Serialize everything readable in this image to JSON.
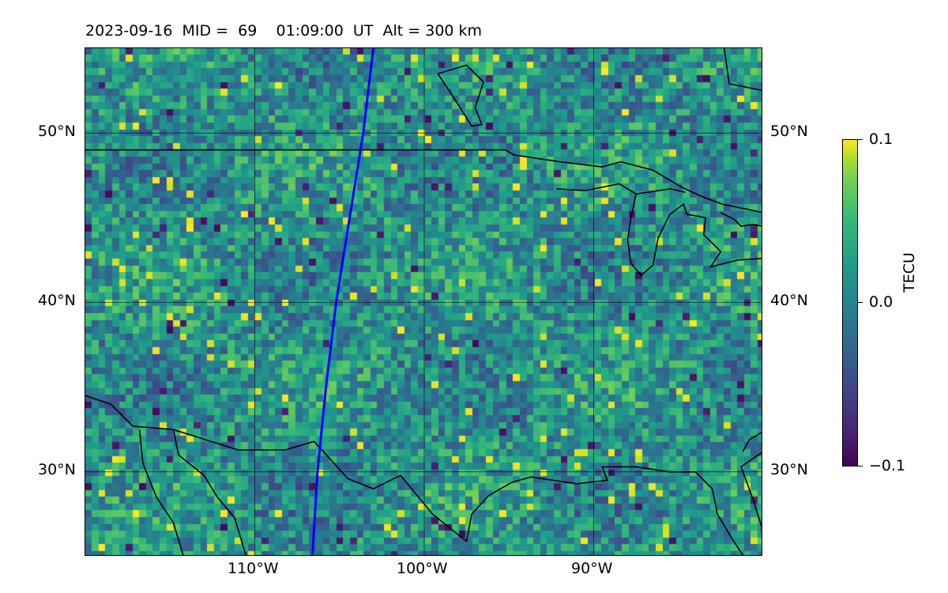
{
  "title": "2023-09-16  MID =  69    01:09:00  UT  Alt = 300 km",
  "map": {
    "lon_range": [
      -120,
      -80
    ],
    "lat_range": [
      25,
      55
    ],
    "lat_ticks": [
      {
        "value": 30,
        "label": "30°N"
      },
      {
        "value": 40,
        "label": "40°N"
      },
      {
        "value": 50,
        "label": "50°N"
      }
    ],
    "lon_ticks": [
      {
        "value": -110,
        "label": "110°W"
      },
      {
        "value": -100,
        "label": "100°W"
      },
      {
        "value": -90,
        "label": "90°W"
      }
    ],
    "gridlines": true,
    "track_color": "#0000ff",
    "track": [
      [
        -103,
        55
      ],
      [
        -103.6,
        50
      ],
      [
        -104.4,
        45
      ],
      [
        -105.2,
        40
      ],
      [
        -105.8,
        35
      ],
      [
        -106.3,
        30
      ],
      [
        -106.6,
        25
      ]
    ],
    "coastlines": [
      [
        [
          -120,
          49.0
        ],
        [
          -95.2,
          49.0
        ],
        [
          -94.7,
          48.7
        ],
        [
          -92.0,
          48.3
        ],
        [
          -89.5,
          48.0
        ],
        [
          -88.4,
          48.3
        ],
        [
          -86.5,
          47.8
        ],
        [
          -84.8,
          46.8
        ],
        [
          -83.5,
          46.2
        ],
        [
          -82.4,
          45.8
        ],
        [
          -80,
          45.3
        ]
      ],
      [
        [
          -120,
          34.5
        ],
        [
          -118.5,
          34.0
        ],
        [
          -117.2,
          32.7
        ],
        [
          -114.8,
          32.5
        ],
        [
          -111.0,
          31.3
        ],
        [
          -108.2,
          31.3
        ],
        [
          -106.5,
          31.8
        ],
        [
          -104.5,
          29.6
        ],
        [
          -103.0,
          29.0
        ],
        [
          -101.4,
          29.8
        ],
        [
          -99.5,
          27.5
        ],
        [
          -97.5,
          25.9
        ],
        [
          -97.2,
          27.5
        ],
        [
          -96.2,
          28.6
        ],
        [
          -94.8,
          29.4
        ],
        [
          -93.7,
          29.7
        ],
        [
          -91.0,
          29.3
        ],
        [
          -89.2,
          29.5
        ],
        [
          -89.5,
          30.3
        ],
        [
          -87.5,
          30.3
        ],
        [
          -85.5,
          30.0
        ],
        [
          -84.0,
          30.0
        ],
        [
          -83.0,
          29.0
        ],
        [
          -82.7,
          27.5
        ],
        [
          -81.8,
          26.0
        ],
        [
          -81.2,
          25.1
        ]
      ],
      [
        [
          -80.0,
          25.2
        ],
        [
          -80.1,
          26.8
        ],
        [
          -80.6,
          28.4
        ],
        [
          -81.3,
          30.3
        ],
        [
          -80.0,
          31.2
        ]
      ],
      [
        [
          -80,
          32.4
        ],
        [
          -80.8,
          31.9
        ],
        [
          -81.2,
          31.2
        ]
      ],
      [
        [
          -114.8,
          32.5
        ],
        [
          -114.5,
          31.0
        ],
        [
          -113.0,
          29.8
        ],
        [
          -112.2,
          28.5
        ],
        [
          -111.2,
          27.3
        ],
        [
          -110.5,
          25.0
        ]
      ],
      [
        [
          -116.8,
          32.5
        ],
        [
          -116.6,
          30.5
        ],
        [
          -115.8,
          28.5
        ],
        [
          -114.8,
          27.0
        ],
        [
          -114.2,
          25.0
        ]
      ],
      [
        [
          -92.2,
          46.7
        ],
        [
          -90.5,
          46.6
        ],
        [
          -88.5,
          47.0
        ],
        [
          -87.5,
          46.4
        ],
        [
          -85.5,
          46.7
        ],
        [
          -84.6,
          46.5
        ]
      ],
      [
        [
          -87.5,
          46.4
        ],
        [
          -87.8,
          45.0
        ],
        [
          -88.0,
          43.7
        ],
        [
          -87.8,
          42.3
        ],
        [
          -87.2,
          41.6
        ],
        [
          -86.5,
          42.2
        ],
        [
          -86.2,
          43.8
        ],
        [
          -85.5,
          45.2
        ],
        [
          -84.7,
          45.8
        ],
        [
          -84.5,
          45.2
        ],
        [
          -83.4,
          45.0
        ],
        [
          -83.5,
          44.0
        ],
        [
          -82.5,
          43.0
        ],
        [
          -83.1,
          42.1
        ],
        [
          -81.5,
          42.5
        ],
        [
          -80,
          42.6
        ]
      ],
      [
        [
          -82.5,
          45.3
        ],
        [
          -81.7,
          44.9
        ],
        [
          -81.3,
          44.5
        ],
        [
          -80.6,
          44.6
        ],
        [
          -80,
          44.5
        ]
      ],
      [
        [
          -80,
          52.5
        ],
        [
          -82.0,
          52.9
        ],
        [
          -82.3,
          55.0
        ]
      ],
      [
        [
          -99.2,
          53.5
        ],
        [
          -97.5,
          54.0
        ],
        [
          -96.5,
          53.0
        ],
        [
          -97.0,
          51.5
        ],
        [
          -96.6,
          50.5
        ],
        [
          -97.2,
          50.4
        ],
        [
          -98.2,
          52.0
        ],
        [
          -99.2,
          53.5
        ]
      ]
    ]
  },
  "colorbar": {
    "label": "TECU",
    "min": -0.1,
    "max": 0.1,
    "ticks": [
      {
        "value": 0.1,
        "label": "0.1"
      },
      {
        "value": 0.0,
        "label": "0.0"
      },
      {
        "value": -0.1,
        "label": "−0.1"
      }
    ],
    "colormap": [
      "#440154",
      "#482878",
      "#3e4989",
      "#31688e",
      "#26828e",
      "#1f9e89",
      "#35b779",
      "#6ece58",
      "#b5de2b",
      "#fde725"
    ]
  }
}
